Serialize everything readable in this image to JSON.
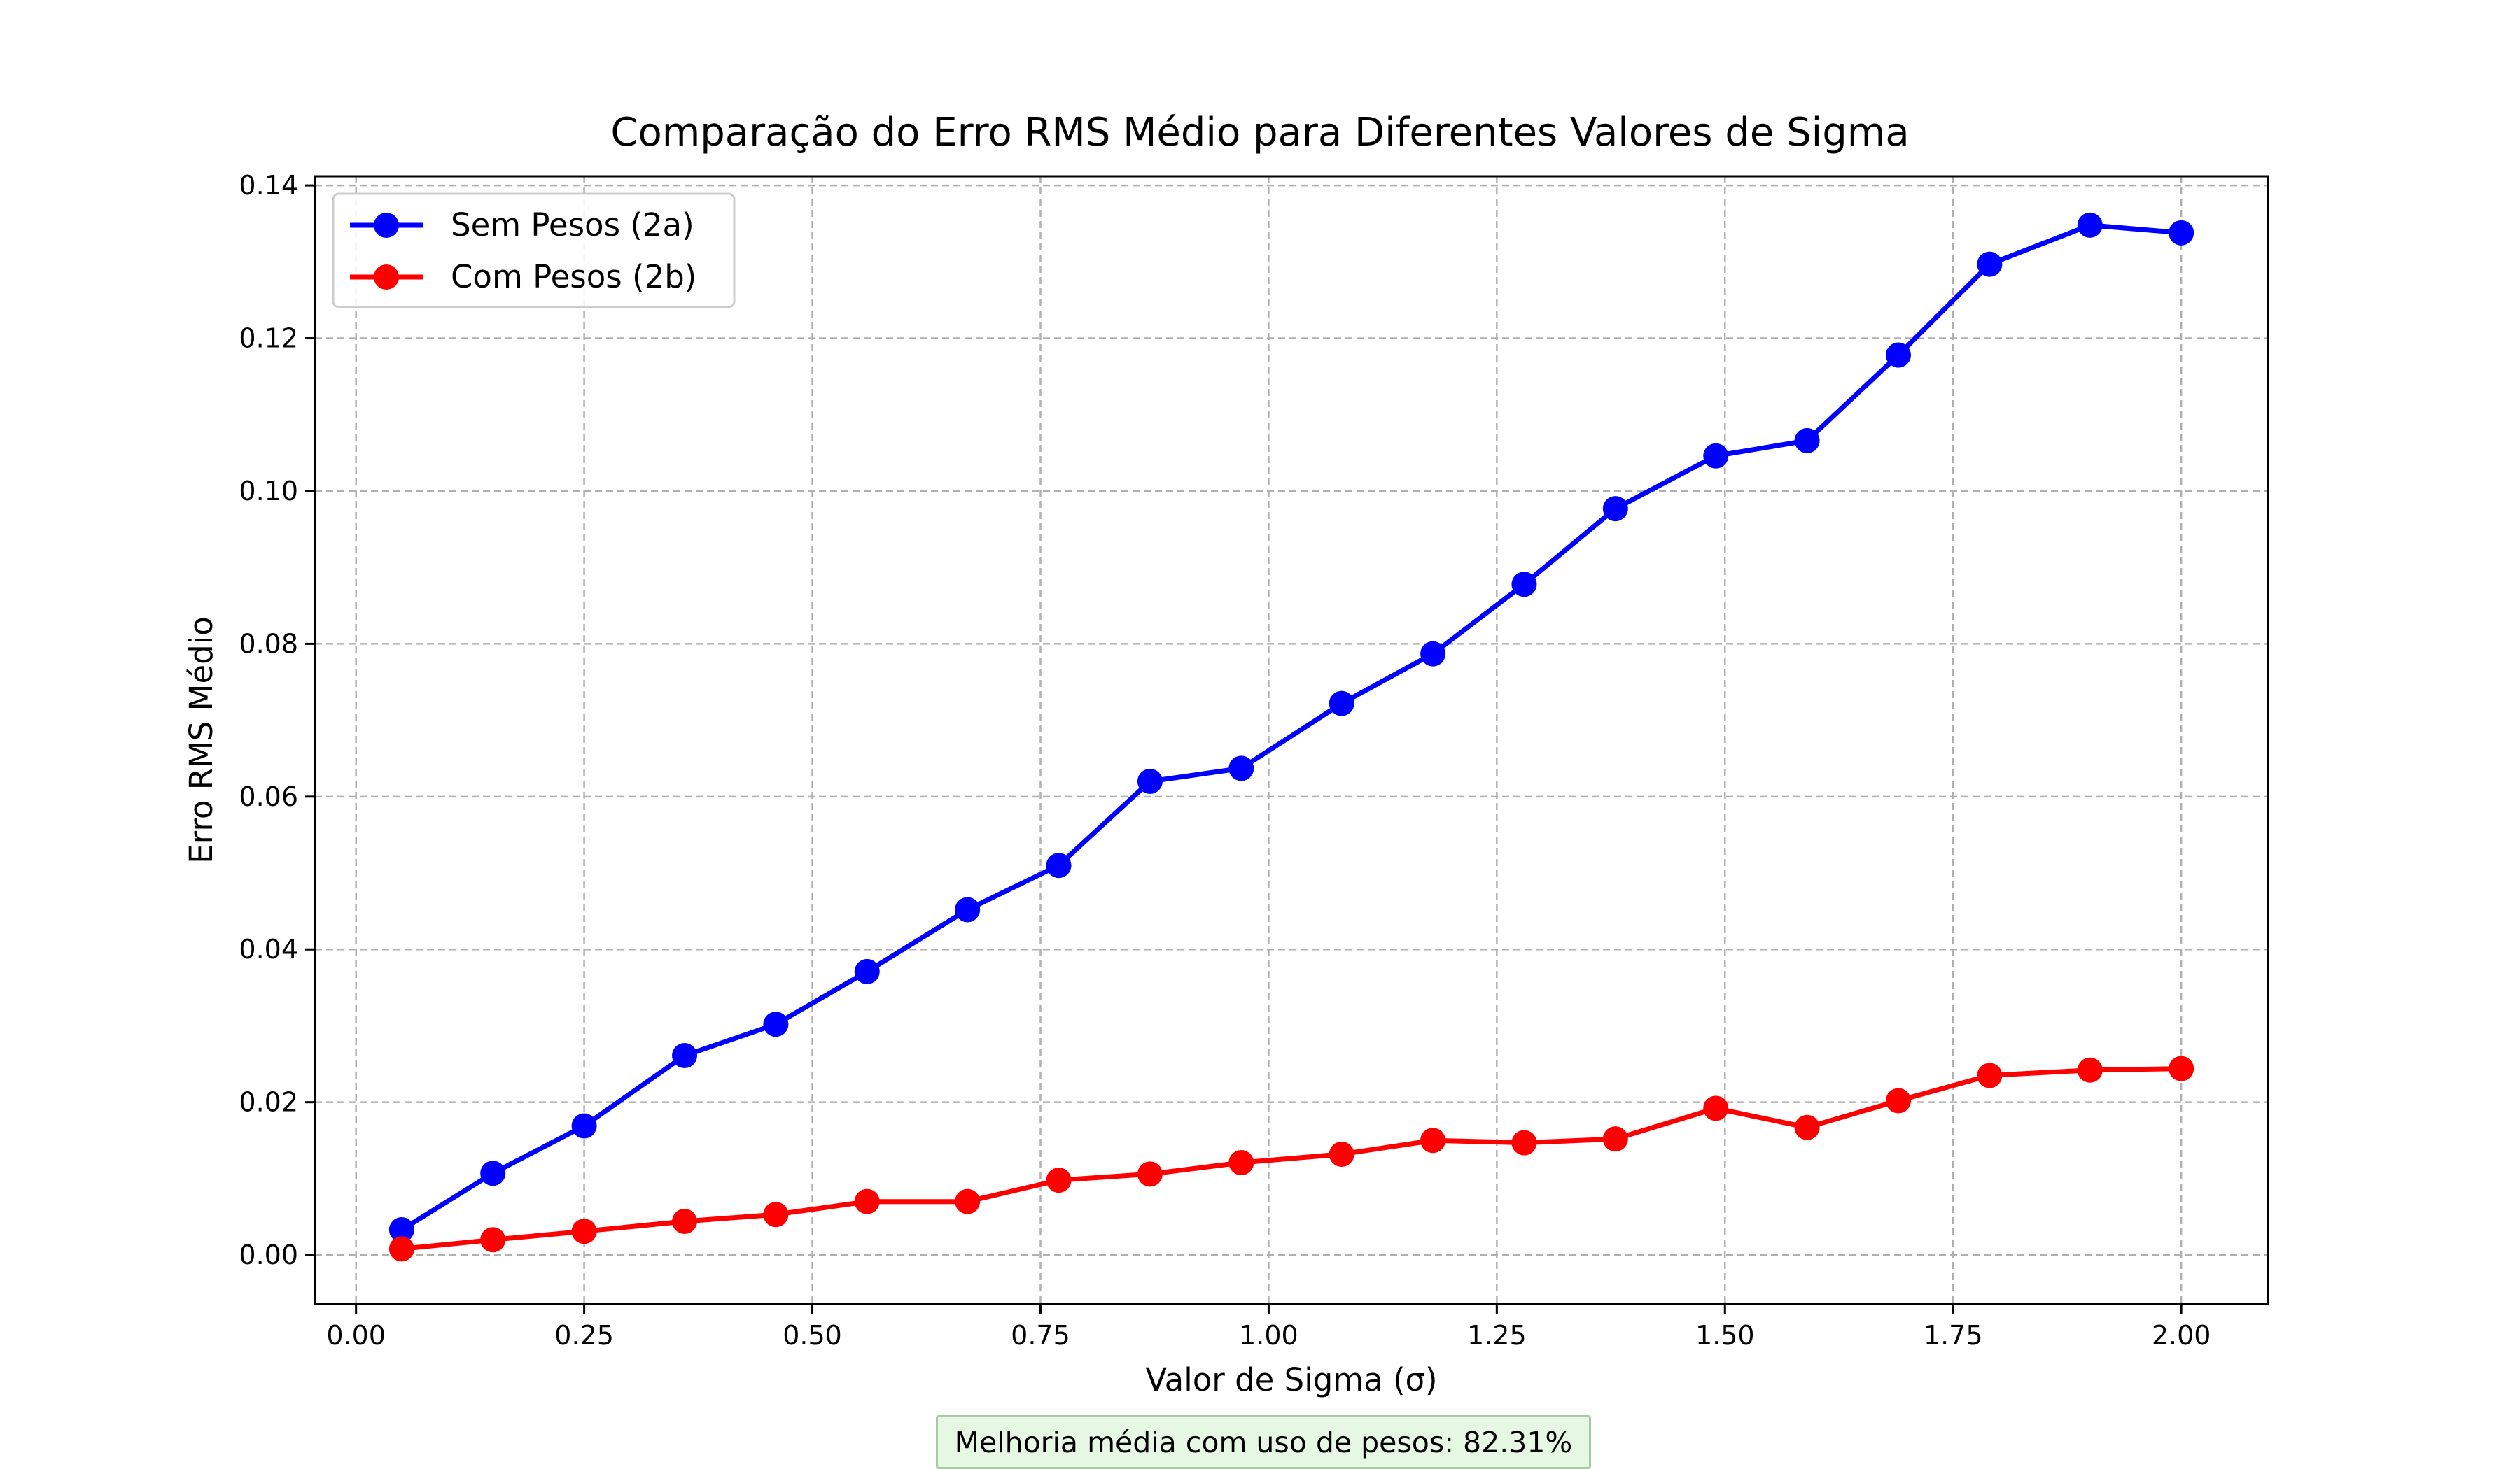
{
  "chart_data": {
    "type": "line",
    "title": "Comparação do Erro RMS Médio para Diferentes Valores de Sigma",
    "xlabel": "Valor de Sigma (σ)",
    "ylabel": "Erro RMS Médio",
    "xlim": [
      -0.045,
      2.095
    ],
    "ylim": [
      -0.0064,
      0.1412
    ],
    "xticks": [
      "0.00",
      "0.25",
      "0.50",
      "0.75",
      "1.00",
      "1.25",
      "1.50",
      "1.75",
      "2.00"
    ],
    "yticks": [
      "0.00",
      "0.02",
      "0.04",
      "0.06",
      "0.08",
      "0.10",
      "0.12",
      "0.14"
    ],
    "grid": true,
    "legend_position": "top-left",
    "x": [
      0.05,
      0.15,
      0.25,
      0.36,
      0.46,
      0.56,
      0.67,
      0.77,
      0.87,
      0.97,
      1.08,
      1.18,
      1.28,
      1.38,
      1.49,
      1.59,
      1.69,
      1.79,
      1.9,
      2.0
    ],
    "series": [
      {
        "name": "Sem Pesos (2a)",
        "color": "#0000ff",
        "values": [
          0.0033,
          0.0107,
          0.0169,
          0.0261,
          0.0302,
          0.0371,
          0.0452,
          0.051,
          0.062,
          0.0637,
          0.0722,
          0.0787,
          0.0878,
          0.0977,
          0.1046,
          0.1066,
          0.1178,
          0.1297,
          0.1348,
          0.1338
        ]
      },
      {
        "name": "Com Pesos (2b)",
        "color": "#ff0000",
        "values": [
          0.0008,
          0.002,
          0.0031,
          0.0044,
          0.0053,
          0.007,
          0.007,
          0.0098,
          0.0106,
          0.0121,
          0.0132,
          0.015,
          0.0147,
          0.0152,
          0.0192,
          0.0167,
          0.0202,
          0.0235,
          0.0242,
          0.0244
        ]
      }
    ],
    "annotation": "Melhoria média com uso de pesos: 82.31%"
  }
}
